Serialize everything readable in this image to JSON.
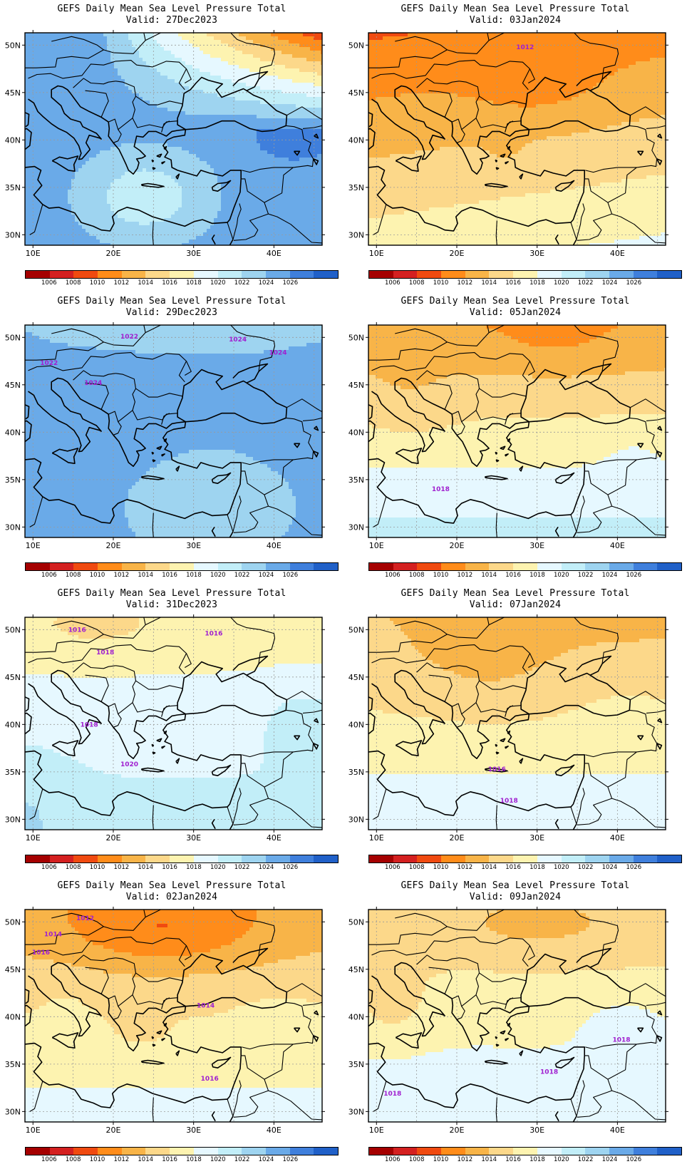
{
  "panels": [
    {
      "title": "GEFS Daily Mean Sea Level Pressure Total",
      "valid": "Valid: 27Dec2023",
      "field": "p27dec",
      "contour_labels": []
    },
    {
      "title": "GEFS Daily Mean Sea Level Pressure Total",
      "valid": "Valid: 03Jan2024",
      "field": "p03jan",
      "contour_labels": [
        "1012"
      ]
    },
    {
      "title": "GEFS Daily Mean Sea Level Pressure Total",
      "valid": "Valid: 29Dec2023",
      "field": "p29dec",
      "contour_labels": [
        "1022",
        "1022",
        "1024",
        "1024",
        "1024"
      ]
    },
    {
      "title": "GEFS Daily Mean Sea Level Pressure Total",
      "valid": "Valid: 05Jan2024",
      "field": "p05jan",
      "contour_labels": [
        "1018"
      ]
    },
    {
      "title": "GEFS Daily Mean Sea Level Pressure Total",
      "valid": "Valid: 31Dec2023",
      "field": "p31dec",
      "contour_labels": [
        "1016",
        "1016",
        "1018",
        "1018",
        "1020"
      ]
    },
    {
      "title": "GEFS Daily Mean Sea Level Pressure Total",
      "valid": "Valid: 07Jan2024",
      "field": "p07jan",
      "contour_labels": [
        "1016",
        "1018"
      ]
    },
    {
      "title": "GEFS Daily Mean Sea Level Pressure Total",
      "valid": "Valid: 02Jan2024",
      "field": "p02jan",
      "contour_labels": [
        "1012",
        "1014",
        "1016",
        "1014",
        "1016"
      ]
    },
    {
      "title": "GEFS Daily Mean Sea Level Pressure Total",
      "valid": "Valid: 09Jan2024",
      "field": "p09jan",
      "contour_labels": [
        "1018",
        "1018",
        "1018"
      ]
    }
  ],
  "map": {
    "lon_labels": [
      "10E",
      "20E",
      "30E",
      "40E"
    ],
    "lat_labels": [
      "50N",
      "45N",
      "40N",
      "35N",
      "30N"
    ]
  },
  "colorbar": {
    "ticks": [
      "1006",
      "1008",
      "1010",
      "1012",
      "1014",
      "1016",
      "1018",
      "1020",
      "1022",
      "1024",
      "1026"
    ],
    "colors": [
      "#a50000",
      "#d42020",
      "#f04a10",
      "#ff8c1a",
      "#f8b448",
      "#fcd88a",
      "#fdf3b0",
      "#e6f8ff",
      "#c2eef8",
      "#9ed4f0",
      "#6aaae8",
      "#3f7fdc",
      "#2060c8"
    ]
  },
  "colors": {
    "contour": "#a020d0",
    "coast": "#000000",
    "grid": "#9a9a9a"
  }
}
